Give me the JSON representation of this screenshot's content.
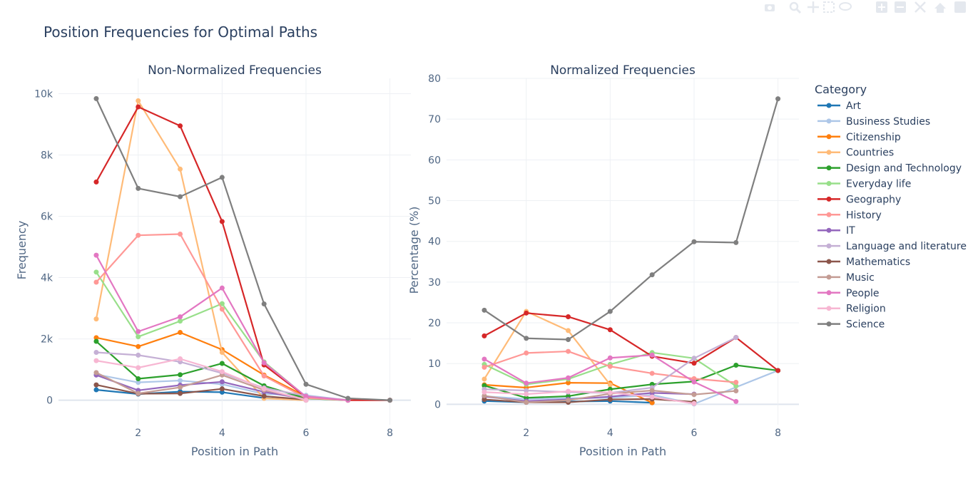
{
  "title": "Position Frequencies for Optimal Paths",
  "chart_data": [
    {
      "type": "line",
      "title": "Non-Normalized Frequencies",
      "xlabel": "Position in Path",
      "ylabel": "Frequency",
      "xlim": [
        0.1,
        8.5
      ],
      "ylim": [
        -800,
        10500
      ],
      "xticks": [
        2,
        4,
        6,
        8
      ],
      "yticks": [
        0,
        2000,
        4000,
        6000,
        8000,
        10000
      ],
      "ytick_labels": [
        "0",
        "2k",
        "4k",
        "6k",
        "8k",
        "10k"
      ],
      "grid": true,
      "series": [
        {
          "name": "Art",
          "x": [
            1,
            2,
            3,
            4,
            5,
            6
          ],
          "y": [
            340,
            200,
            280,
            260,
            70,
            0
          ]
        },
        {
          "name": "Business Studies",
          "x": [
            1,
            2,
            3,
            4,
            5,
            6,
            7
          ],
          "y": [
            840,
            580,
            640,
            520,
            200,
            160,
            0
          ]
        },
        {
          "name": "Citizenship",
          "x": [
            1,
            2,
            3,
            4,
            5,
            6,
            7
          ],
          "y": [
            2040,
            1750,
            2210,
            1650,
            820,
            120,
            0
          ]
        },
        {
          "name": "Countries",
          "x": [
            1,
            2,
            3,
            4,
            5,
            6
          ],
          "y": [
            2650,
            9770,
            7540,
            1560,
            60,
            0
          ]
        },
        {
          "name": "Design and Technology",
          "x": [
            1,
            2,
            3,
            4,
            5,
            6,
            7
          ],
          "y": [
            1920,
            700,
            830,
            1200,
            470,
            60,
            0
          ]
        },
        {
          "name": "Everyday life",
          "x": [
            1,
            2,
            3,
            4,
            5,
            6,
            7
          ],
          "y": [
            4180,
            2070,
            2580,
            3150,
            1250,
            110,
            0
          ]
        },
        {
          "name": "Geography",
          "x": [
            1,
            2,
            3,
            4,
            5,
            6,
            7,
            8
          ],
          "y": [
            7120,
            9570,
            8950,
            5830,
            1150,
            110,
            0,
            0
          ]
        },
        {
          "name": "History",
          "x": [
            1,
            2,
            3,
            4,
            5,
            6,
            7
          ],
          "y": [
            3850,
            5380,
            5420,
            2970,
            790,
            70,
            0
          ]
        },
        {
          "name": "IT",
          "x": [
            1,
            2,
            3,
            4,
            5,
            6
          ],
          "y": [
            820,
            320,
            490,
            600,
            270,
            40
          ]
        },
        {
          "name": "Language and literature",
          "x": [
            1,
            2,
            3,
            4,
            5,
            6,
            7
          ],
          "y": [
            1560,
            1470,
            1250,
            880,
            400,
            140,
            0
          ]
        },
        {
          "name": "Mathematics",
          "x": [
            1,
            2,
            3,
            4,
            5,
            6
          ],
          "y": [
            500,
            210,
            220,
            370,
            130,
            20
          ]
        },
        {
          "name": "Music",
          "x": [
            1,
            2,
            3,
            4,
            5,
            6
          ],
          "y": [
            900,
            220,
            420,
            820,
            330,
            30
          ]
        },
        {
          "name": "People",
          "x": [
            1,
            2,
            3,
            4,
            5,
            6,
            7
          ],
          "y": [
            4730,
            2240,
            2720,
            3660,
            1220,
            120,
            0
          ]
        },
        {
          "name": "Religion",
          "x": [
            1,
            2,
            3,
            4,
            5,
            6
          ],
          "y": [
            1290,
            1060,
            1350,
            930,
            370,
            0
          ]
        },
        {
          "name": "Science",
          "x": [
            1,
            2,
            3,
            4,
            5,
            6,
            7,
            8
          ],
          "y": [
            9840,
            6910,
            6640,
            7270,
            3140,
            520,
            60,
            0
          ]
        }
      ]
    },
    {
      "type": "line",
      "title": "Normalized Frequencies",
      "xlabel": "Position in Path",
      "ylabel": "Percentage (%)",
      "xlim": [
        0.1,
        8.5
      ],
      "ylim": [
        -5,
        80
      ],
      "xticks": [
        2,
        4,
        6,
        8
      ],
      "yticks": [
        0,
        10,
        20,
        30,
        40,
        50,
        60,
        70,
        80
      ],
      "ytick_labels": [
        "0",
        "10",
        "20",
        "30",
        "40",
        "50",
        "60",
        "70",
        "80"
      ],
      "grid": true,
      "series": [
        {
          "name": "Art",
          "x": [
            1,
            2,
            3,
            4,
            5
          ],
          "y": [
            0.8,
            0.5,
            0.7,
            0.8,
            0.4
          ]
        },
        {
          "name": "Business Studies",
          "x": [
            1,
            2,
            3,
            4,
            5,
            6,
            8
          ],
          "y": [
            2.0,
            1.3,
            1.5,
            1.6,
            2.3,
            0.1,
            8.3
          ]
        },
        {
          "name": "Citizenship",
          "x": [
            1,
            2,
            3,
            4,
            5
          ],
          "y": [
            4.8,
            4.1,
            5.3,
            5.2,
            0.4
          ]
        },
        {
          "name": "Countries",
          "x": [
            1,
            2,
            3,
            4
          ],
          "y": [
            6.2,
            22.8,
            18.1,
            4.8
          ]
        },
        {
          "name": "Design and Technology",
          "x": [
            1,
            2,
            3,
            4,
            5,
            6,
            7,
            8
          ],
          "y": [
            4.6,
            1.6,
            2.0,
            3.7,
            4.9,
            5.6,
            9.6,
            8.3
          ]
        },
        {
          "name": "Everyday life",
          "x": [
            1,
            2,
            3,
            4,
            5,
            6,
            7
          ],
          "y": [
            9.8,
            4.9,
            6.2,
            9.8,
            12.7,
            11.3,
            4.5
          ]
        },
        {
          "name": "Geography",
          "x": [
            1,
            2,
            3,
            4,
            5,
            6,
            7,
            8
          ],
          "y": [
            16.8,
            22.4,
            21.5,
            18.3,
            11.8,
            10.1,
            16.4,
            8.3
          ]
        },
        {
          "name": "History",
          "x": [
            1,
            2,
            3,
            4,
            5,
            6,
            7
          ],
          "y": [
            9.1,
            12.6,
            13.0,
            9.3,
            7.6,
            6.3,
            5.4
          ]
        },
        {
          "name": "IT",
          "x": [
            1,
            2,
            3,
            4,
            5,
            6
          ],
          "y": [
            1.9,
            0.8,
            1.2,
            1.9,
            2.8,
            2.5
          ]
        },
        {
          "name": "Language and literature",
          "x": [
            1,
            2,
            3,
            4,
            5,
            6,
            7
          ],
          "y": [
            3.7,
            3.4,
            3.0,
            2.8,
            4.1,
            11.3,
            16.4
          ]
        },
        {
          "name": "Mathematics",
          "x": [
            1,
            2,
            3,
            4,
            5,
            6
          ],
          "y": [
            1.2,
            0.5,
            0.5,
            1.2,
            1.3,
            0.6
          ]
        },
        {
          "name": "Music",
          "x": [
            1,
            2,
            3,
            4,
            5,
            6,
            7
          ],
          "y": [
            2.1,
            0.5,
            1.0,
            2.6,
            3.4,
            2.4,
            3.3
          ]
        },
        {
          "name": "People",
          "x": [
            1,
            2,
            3,
            4,
            5,
            6,
            7
          ],
          "y": [
            11.1,
            5.2,
            6.5,
            11.4,
            12.1,
            5.5,
            0.7
          ]
        },
        {
          "name": "Religion",
          "x": [
            1,
            2,
            3,
            4,
            5,
            6
          ],
          "y": [
            3.0,
            2.5,
            3.2,
            2.9,
            1.8,
            0.2
          ]
        },
        {
          "name": "Science",
          "x": [
            1,
            2,
            3,
            4,
            5,
            6,
            7,
            8
          ],
          "y": [
            23.1,
            16.2,
            15.9,
            22.8,
            31.8,
            39.9,
            39.7,
            75.0
          ]
        }
      ]
    }
  ],
  "legend": {
    "title": "Category",
    "placement": "right",
    "items": [
      {
        "label": "Art",
        "color": "#1f77b4"
      },
      {
        "label": "Business Studies",
        "color": "#aec7e8"
      },
      {
        "label": "Citizenship",
        "color": "#ff7f0e"
      },
      {
        "label": "Countries",
        "color": "#ffbb78"
      },
      {
        "label": "Design and Technology",
        "color": "#2ca02c"
      },
      {
        "label": "Everyday life",
        "color": "#98df8a"
      },
      {
        "label": "Geography",
        "color": "#d62728"
      },
      {
        "label": "History",
        "color": "#ff9896"
      },
      {
        "label": "IT",
        "color": "#9467bd"
      },
      {
        "label": "Language and literature",
        "color": "#c5b0d5"
      },
      {
        "label": "Mathematics",
        "color": "#8c564b"
      },
      {
        "label": "Music",
        "color": "#c49c94"
      },
      {
        "label": "People",
        "color": "#e377c2"
      },
      {
        "label": "Religion",
        "color": "#f7b6d2"
      },
      {
        "label": "Science",
        "color": "#7f7f7f"
      }
    ]
  },
  "modebar": {
    "icons": [
      "camera-icon",
      "zoom-icon",
      "pan-icon",
      "box-select-icon",
      "lasso-icon",
      "zoom-in-icon",
      "zoom-out-icon",
      "autoscale-icon",
      "reset-axes-icon",
      "plotly-logo-icon"
    ]
  }
}
